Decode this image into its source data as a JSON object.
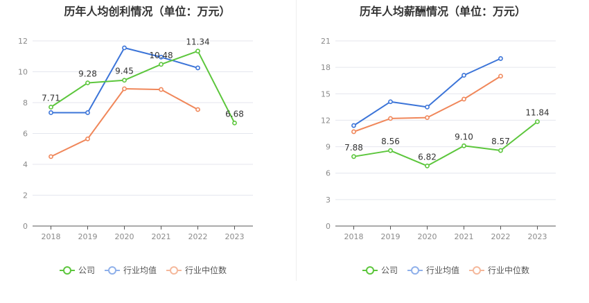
{
  "charts": [
    {
      "title": "历年人均创利情况（单位：万元）"
    },
    {
      "title": "历年人均薪酬情况（单位：万元）"
    }
  ],
  "legend": [
    {
      "label": "公司",
      "color": "#5cc63c"
    },
    {
      "label": "行业均值",
      "color": "#3b74d8"
    },
    {
      "label": "行业中位数",
      "color": "#f0875a"
    }
  ],
  "chart_data": [
    {
      "type": "line",
      "title": "历年人均创利情况（单位：万元）",
      "categories": [
        "2018",
        "2019",
        "2020",
        "2021",
        "2022",
        "2023"
      ],
      "ylim": [
        0,
        12
      ],
      "yticks": [
        0,
        2,
        4,
        6,
        8,
        10,
        12
      ],
      "grid": true,
      "legend_position": "bottom",
      "series": [
        {
          "name": "公司",
          "color": "#5cc63c",
          "values": [
            7.71,
            9.28,
            9.45,
            10.48,
            11.34,
            6.68
          ],
          "labels": [
            "7.71",
            "9.28",
            "9.45",
            "10.48",
            "11.34",
            "6.68"
          ]
        },
        {
          "name": "行业均值",
          "color": "#3b74d8",
          "values": [
            7.35,
            7.35,
            11.55,
            10.95,
            10.25,
            null
          ]
        },
        {
          "name": "行业中位数",
          "color": "#f0875a",
          "values": [
            4.5,
            5.65,
            8.9,
            8.85,
            7.55,
            null
          ]
        }
      ]
    },
    {
      "type": "line",
      "title": "历年人均薪酬情况（单位：万元）",
      "categories": [
        "2018",
        "2019",
        "2020",
        "2021",
        "2022",
        "2023"
      ],
      "ylim": [
        0,
        21
      ],
      "yticks": [
        0,
        3,
        6,
        9,
        12,
        15,
        18,
        21
      ],
      "grid": true,
      "legend_position": "bottom",
      "series": [
        {
          "name": "公司",
          "color": "#5cc63c",
          "values": [
            7.88,
            8.56,
            6.82,
            9.1,
            8.57,
            11.84
          ],
          "labels": [
            "7.88",
            "8.56",
            "6.82",
            "9.10",
            "8.57",
            "11.84"
          ]
        },
        {
          "name": "行业均值",
          "color": "#3b74d8",
          "values": [
            11.4,
            14.1,
            13.5,
            17.1,
            19.0,
            null
          ]
        },
        {
          "name": "行业中位数",
          "color": "#f0875a",
          "values": [
            10.7,
            12.2,
            12.3,
            14.4,
            17.0,
            null
          ]
        }
      ]
    }
  ]
}
